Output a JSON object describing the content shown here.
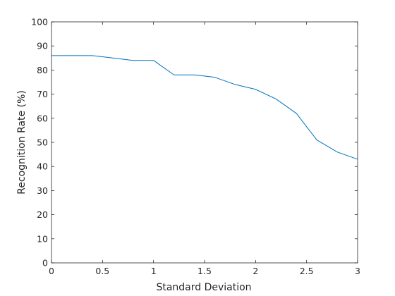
{
  "chart_data": {
    "type": "line",
    "title": "",
    "xlabel": "Standard Deviation",
    "ylabel": "Recognition Rate (%)",
    "xlim": [
      0,
      3
    ],
    "ylim": [
      0,
      100
    ],
    "xticks": [
      0,
      0.5,
      1,
      1.5,
      2,
      2.5,
      3
    ],
    "xtick_labels": [
      "0",
      "0.5",
      "1",
      "1.5",
      "2",
      "2.5",
      "3"
    ],
    "yticks": [
      0,
      10,
      20,
      30,
      40,
      50,
      60,
      70,
      80,
      90,
      100
    ],
    "ytick_labels": [
      "0",
      "10",
      "20",
      "30",
      "40",
      "50",
      "60",
      "70",
      "80",
      "90",
      "100"
    ],
    "grid": false,
    "series": [
      {
        "color": "#0072bd",
        "x": [
          0,
          0.2,
          0.4,
          0.6,
          0.8,
          1.0,
          1.2,
          1.4,
          1.6,
          1.8,
          2.0,
          2.2,
          2.4,
          2.6,
          2.8,
          3.0
        ],
        "y": [
          86,
          86,
          86,
          85,
          84,
          84,
          78,
          78,
          77,
          74,
          72,
          68,
          62,
          51,
          46,
          43
        ]
      }
    ]
  }
}
